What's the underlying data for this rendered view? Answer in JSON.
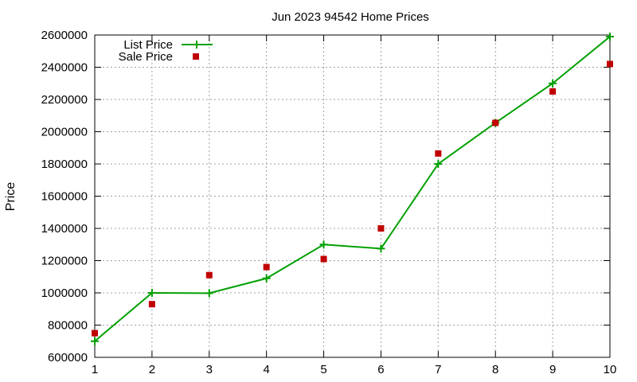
{
  "chart_data": {
    "type": "line",
    "title": "Jun 2023 94542 Home Prices",
    "xlabel": "",
    "ylabel": "Price",
    "x": [
      1,
      2,
      3,
      4,
      5,
      6,
      7,
      8,
      9,
      10
    ],
    "xlim": [
      1,
      10
    ],
    "ylim": [
      600000,
      2600000
    ],
    "xticks": [
      "1",
      "2",
      "3",
      "4",
      "5",
      "6",
      "7",
      "8",
      "9",
      "10"
    ],
    "yticks": [
      "600000",
      "800000",
      "1000000",
      "1200000",
      "1400000",
      "1600000",
      "1800000",
      "2000000",
      "2200000",
      "2400000",
      "2600000"
    ],
    "grid": true,
    "legend_position": "top-left",
    "series": [
      {
        "name": "List Price",
        "style": "line+plus-markers",
        "color": "#00a000",
        "values": [
          700000,
          1000000,
          998000,
          1090000,
          1300000,
          1275000,
          1800000,
          2055000,
          2300000,
          2590000
        ]
      },
      {
        "name": "Sale Price",
        "style": "square-markers",
        "color": "#c00000",
        "values": [
          750000,
          930000,
          1110000,
          1160000,
          1210000,
          1400000,
          1865000,
          2055000,
          2250000,
          2420000
        ]
      }
    ]
  }
}
